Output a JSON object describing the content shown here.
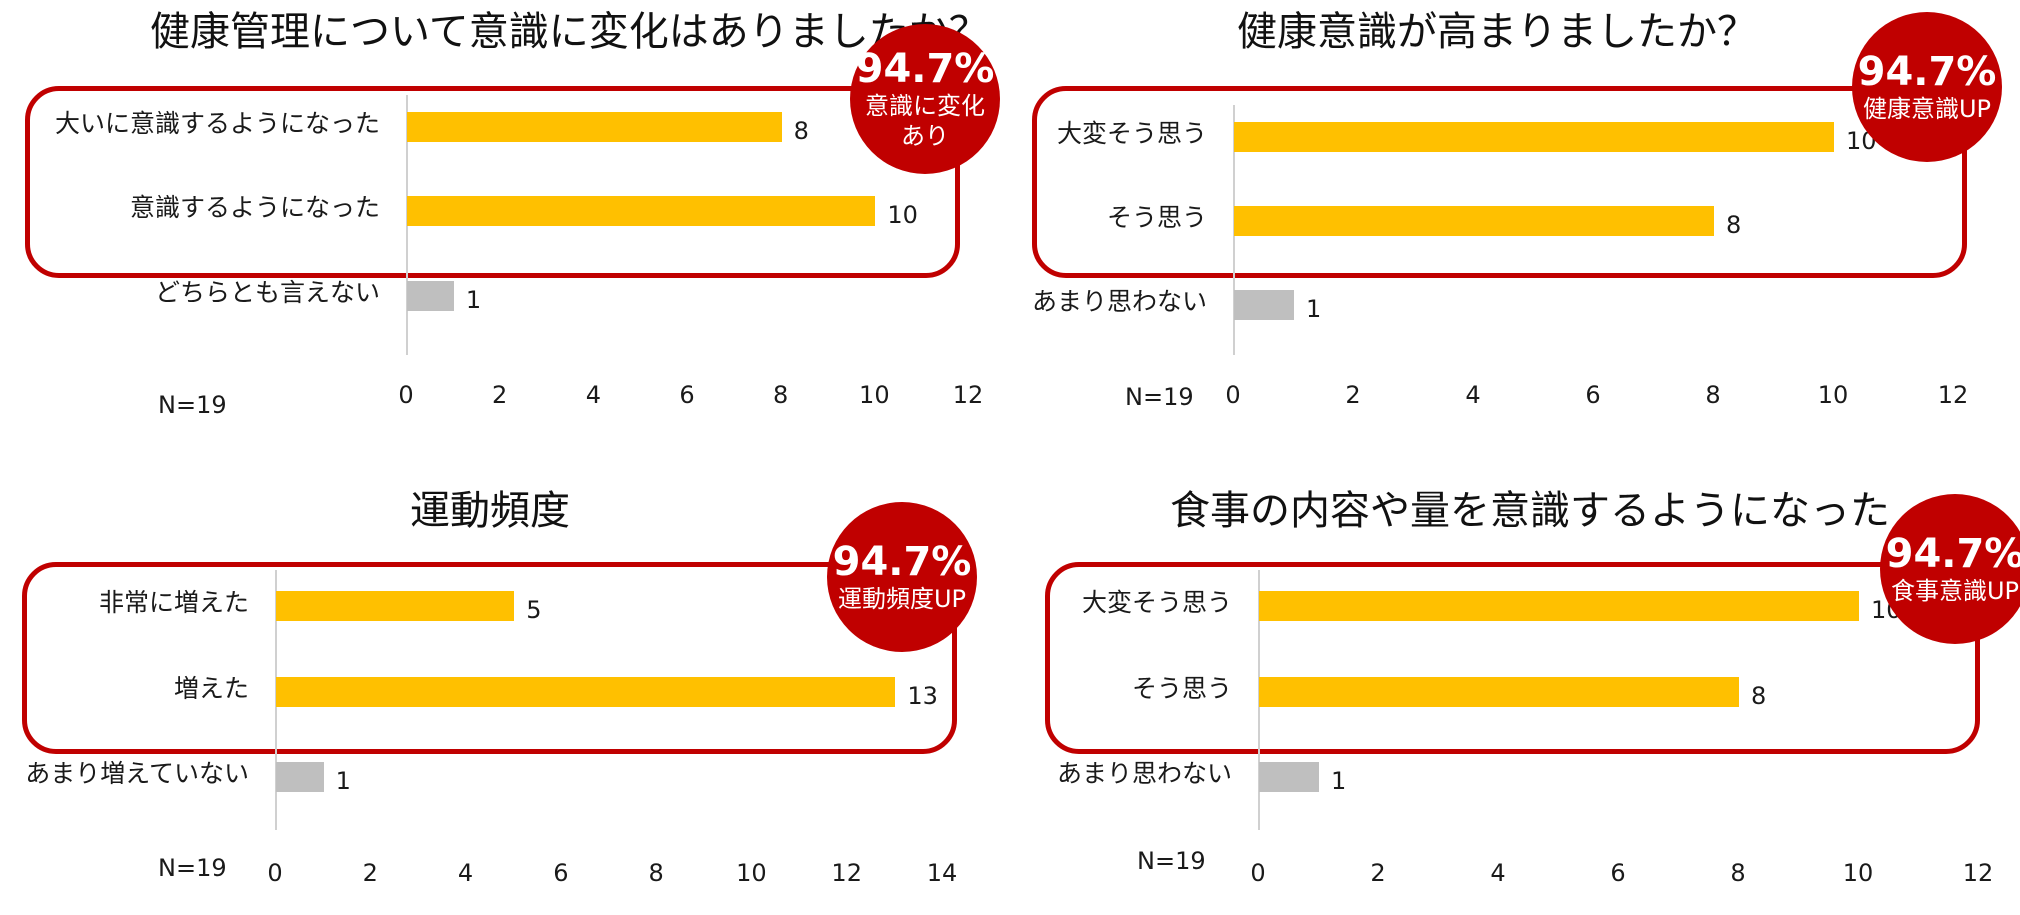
{
  "colors": {
    "accent": "#c00000",
    "bar_primary": "#ffc000",
    "bar_other": "#bfbfbf"
  },
  "chart_data": [
    {
      "type": "bar",
      "title": "健康管理について意識に変化はありましたか？",
      "categories": [
        "大いに意識するようになった",
        "意識するようになった",
        "どちらとも言えない"
      ],
      "values": [
        8,
        10,
        1
      ],
      "highlight": [
        true,
        true,
        false
      ],
      "xlim": [
        0,
        12
      ],
      "ticks": [
        "0",
        "2",
        "4",
        "6",
        "8",
        "10",
        "12"
      ],
      "n_label": "N=19",
      "badge": {
        "percent": "94.7%",
        "text": "意識に変化\nあり"
      }
    },
    {
      "type": "bar",
      "title": "健康意識が高まりましたか？",
      "categories": [
        "大変そう思う",
        "そう思う",
        "あまり思わない"
      ],
      "values": [
        10,
        8,
        1
      ],
      "highlight": [
        true,
        true,
        false
      ],
      "xlim": [
        0,
        12
      ],
      "ticks": [
        "0",
        "2",
        "4",
        "6",
        "8",
        "10",
        "12"
      ],
      "n_label": "N=19",
      "badge": {
        "percent": "94.7%",
        "text": "健康意識UP"
      }
    },
    {
      "type": "bar",
      "title": "運動頻度",
      "categories": [
        "非常に増えた",
        "増えた",
        "あまり増えていない"
      ],
      "values": [
        5,
        13,
        1
      ],
      "highlight": [
        true,
        true,
        false
      ],
      "xlim": [
        0,
        14
      ],
      "ticks": [
        "0",
        "2",
        "4",
        "6",
        "8",
        "10",
        "12",
        "14"
      ],
      "n_label": "N=19",
      "badge": {
        "percent": "94.7%",
        "text": "運動頻度UP"
      }
    },
    {
      "type": "bar",
      "title": "食事の内容や量を意識するようになった",
      "categories": [
        "大変そう思う",
        "そう思う",
        "あまり思わない"
      ],
      "values": [
        10,
        8,
        1
      ],
      "highlight": [
        true,
        true,
        false
      ],
      "xlim": [
        0,
        12
      ],
      "ticks": [
        "0",
        "2",
        "4",
        "6",
        "8",
        "10",
        "12"
      ],
      "n_label": "N=19",
      "badge": {
        "percent": "94.7%",
        "text": "食事意識UP"
      }
    }
  ]
}
